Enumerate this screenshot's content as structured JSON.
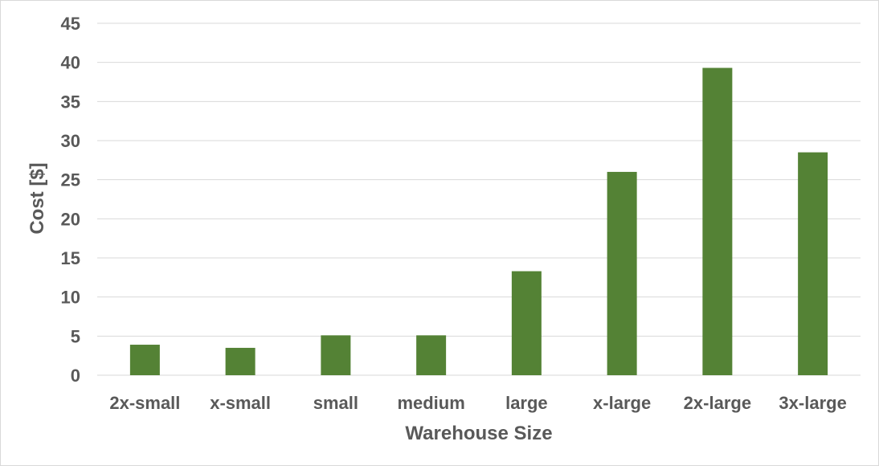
{
  "chart_data": {
    "type": "bar",
    "categories": [
      "2x-small",
      "x-small",
      "small",
      "medium",
      "large",
      "x-large",
      "2x-large",
      "3x-large"
    ],
    "values": [
      3.9,
      3.5,
      5.1,
      5.1,
      13.3,
      26.0,
      39.3,
      28.5
    ],
    "xlabel": "Warehouse Size",
    "ylabel": "Cost [$]",
    "ylim": [
      0,
      45
    ],
    "yticks": [
      0,
      5,
      10,
      15,
      20,
      25,
      30,
      35,
      40,
      45
    ],
    "grid": true,
    "legend": "none",
    "colors": {
      "bar": "#548235",
      "grid": "#d9d9d9",
      "text": "#595959"
    }
  }
}
